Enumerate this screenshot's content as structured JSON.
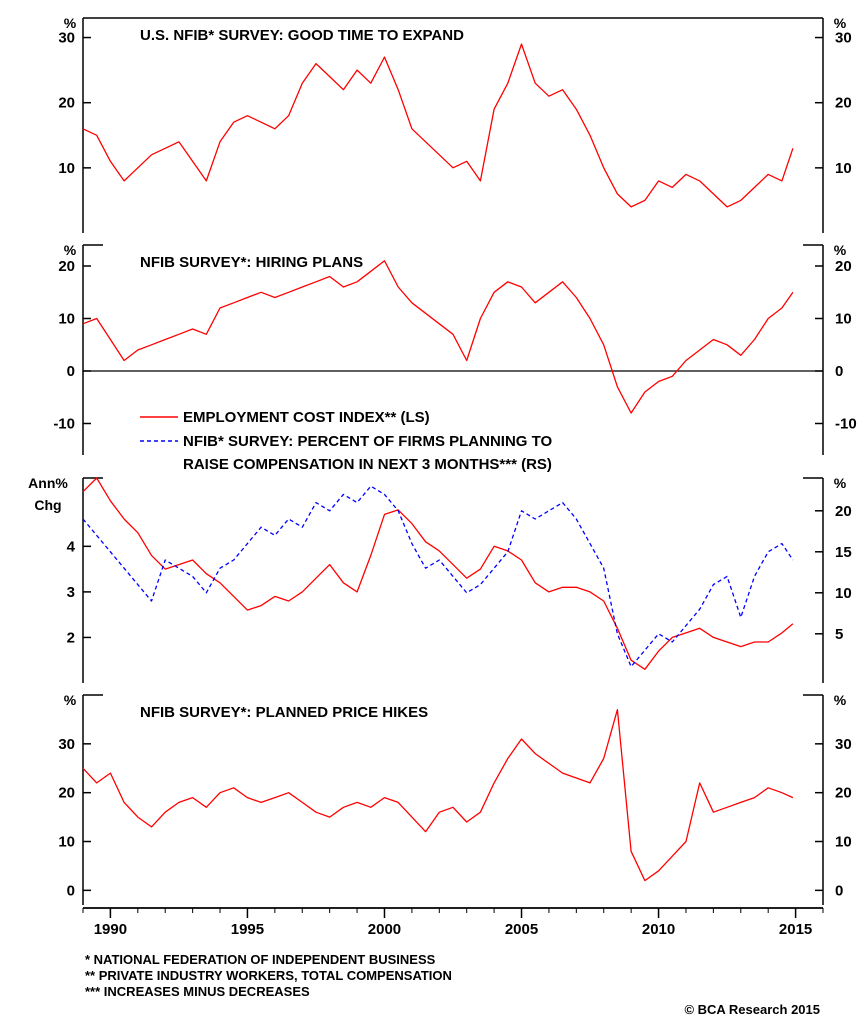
{
  "chart_data": [
    {
      "type": "line",
      "title": "U.S. NFIB* SURVEY: GOOD TIME TO EXPAND",
      "left_unit": "%",
      "right_unit": "%",
      "ylim": [
        0,
        33
      ],
      "yticks": [
        10,
        20,
        30
      ],
      "zero_line": false,
      "series": [
        {
          "color": "#ff0000",
          "dashed": false,
          "x": [
            1989.0,
            1989.5,
            1990.0,
            1990.5,
            1991.0,
            1991.5,
            1992.0,
            1992.5,
            1993.0,
            1993.5,
            1994.0,
            1994.5,
            1995.0,
            1995.5,
            1996.0,
            1996.5,
            1997.0,
            1997.5,
            1998.0,
            1998.5,
            1999.0,
            1999.5,
            2000.0,
            2000.5,
            2001.0,
            2001.5,
            2002.0,
            2002.5,
            2003.0,
            2003.5,
            2004.0,
            2004.5,
            2005.0,
            2005.5,
            2006.0,
            2006.5,
            2007.0,
            2007.5,
            2008.0,
            2008.5,
            2009.0,
            2009.5,
            2010.0,
            2010.5,
            2011.0,
            2011.5,
            2012.0,
            2012.5,
            2013.0,
            2013.5,
            2014.0,
            2014.5,
            2014.9
          ],
          "y": [
            16,
            15,
            11,
            8,
            10,
            12,
            13,
            14,
            11,
            8,
            14,
            17,
            18,
            17,
            16,
            18,
            23,
            26,
            24,
            22,
            25,
            23,
            27,
            22,
            16,
            14,
            12,
            10,
            11,
            8,
            19,
            23,
            29,
            23,
            21,
            22,
            19,
            15,
            10,
            6,
            4,
            5,
            8,
            7,
            9,
            8,
            6,
            4,
            5,
            7,
            9,
            8,
            13
          ]
        }
      ]
    },
    {
      "type": "line",
      "title": "NFIB SURVEY*: HIRING PLANS",
      "left_unit": "%",
      "right_unit": "%",
      "ylim": [
        -16,
        24
      ],
      "yticks": [
        -10,
        0,
        10,
        20
      ],
      "zero_line": true,
      "series": [
        {
          "color": "#ff0000",
          "dashed": false,
          "x": [
            1989.0,
            1989.5,
            1990.0,
            1990.5,
            1991.0,
            1991.5,
            1992.0,
            1992.5,
            1993.0,
            1993.5,
            1994.0,
            1994.5,
            1995.0,
            1995.5,
            1996.0,
            1996.5,
            1997.0,
            1997.5,
            1998.0,
            1998.5,
            1999.0,
            1999.5,
            2000.0,
            2000.5,
            2001.0,
            2001.5,
            2002.0,
            2002.5,
            2003.0,
            2003.5,
            2004.0,
            2004.5,
            2005.0,
            2005.5,
            2006.0,
            2006.5,
            2007.0,
            2007.5,
            2008.0,
            2008.5,
            2009.0,
            2009.5,
            2010.0,
            2010.5,
            2011.0,
            2011.5,
            2012.0,
            2012.5,
            2013.0,
            2013.5,
            2014.0,
            2014.5,
            2014.9
          ],
          "y": [
            9,
            10,
            6,
            2,
            4,
            5,
            6,
            7,
            8,
            7,
            12,
            13,
            14,
            15,
            14,
            15,
            16,
            17,
            18,
            16,
            17,
            19,
            21,
            16,
            13,
            11,
            9,
            7,
            2,
            10,
            15,
            17,
            16,
            13,
            15,
            17,
            14,
            10,
            5,
            -3,
            -8,
            -4,
            -2,
            -1,
            2,
            4,
            6,
            5,
            3,
            6,
            10,
            12,
            15
          ]
        }
      ]
    },
    {
      "type": "line",
      "title": "",
      "left_unit": "Ann%\nChg",
      "right_unit": "%",
      "ylim": [
        1.0,
        5.5
      ],
      "yticks": [
        2,
        3,
        4
      ],
      "right_ylim": [
        -1,
        24
      ],
      "right_yticks": [
        5,
        10,
        15,
        20
      ],
      "zero_line": false,
      "legend": [
        "EMPLOYMENT COST INDEX** (LS)",
        "NFIB* SURVEY: PERCENT OF FIRMS PLANNING TO",
        "RAISE COMPENSATION IN NEXT 3 MONTHS*** (RS)"
      ],
      "series": [
        {
          "name": "EMPLOYMENT COST INDEX** (LS)",
          "color": "#ff0000",
          "dashed": false,
          "axis": "left",
          "x": [
            1989.0,
            1989.5,
            1990.0,
            1990.5,
            1991.0,
            1991.5,
            1992.0,
            1992.5,
            1993.0,
            1993.5,
            1994.0,
            1994.5,
            1995.0,
            1995.5,
            1996.0,
            1996.5,
            1997.0,
            1997.5,
            1998.0,
            1998.5,
            1999.0,
            1999.5,
            2000.0,
            2000.5,
            2001.0,
            2001.5,
            2002.0,
            2002.5,
            2003.0,
            2003.5,
            2004.0,
            2004.5,
            2005.0,
            2005.5,
            2006.0,
            2006.5,
            2007.0,
            2007.5,
            2008.0,
            2008.5,
            2009.0,
            2009.5,
            2010.0,
            2010.5,
            2011.0,
            2011.5,
            2012.0,
            2012.5,
            2013.0,
            2013.5,
            2014.0,
            2014.5,
            2014.9
          ],
          "y": [
            5.2,
            5.5,
            5.0,
            4.6,
            4.3,
            3.8,
            3.5,
            3.6,
            3.7,
            3.4,
            3.2,
            2.9,
            2.6,
            2.7,
            2.9,
            2.8,
            3.0,
            3.3,
            3.6,
            3.2,
            3.0,
            3.8,
            4.7,
            4.8,
            4.5,
            4.1,
            3.9,
            3.6,
            3.3,
            3.5,
            4.0,
            3.9,
            3.7,
            3.2,
            3.0,
            3.1,
            3.1,
            3.0,
            2.8,
            2.2,
            1.5,
            1.3,
            1.7,
            2.0,
            2.1,
            2.2,
            2.0,
            1.9,
            1.8,
            1.9,
            1.9,
            2.1,
            2.3
          ]
        },
        {
          "name": "NFIB* SURVEY: PERCENT OF FIRMS PLANNING TO RAISE COMPENSATION IN NEXT 3 MONTHS*** (RS)",
          "color": "#0000ff",
          "dashed": true,
          "axis": "right",
          "x": [
            1989.0,
            1989.5,
            1990.0,
            1990.5,
            1991.0,
            1991.5,
            1992.0,
            1992.5,
            1993.0,
            1993.5,
            1994.0,
            1994.5,
            1995.0,
            1995.5,
            1996.0,
            1996.5,
            1997.0,
            1997.5,
            1998.0,
            1998.5,
            1999.0,
            1999.5,
            2000.0,
            2000.5,
            2001.0,
            2001.5,
            2002.0,
            2002.5,
            2003.0,
            2003.5,
            2004.0,
            2004.5,
            2005.0,
            2005.5,
            2006.0,
            2006.5,
            2007.0,
            2007.5,
            2008.0,
            2008.5,
            2009.0,
            2009.5,
            2010.0,
            2010.5,
            2011.0,
            2011.5,
            2012.0,
            2012.5,
            2013.0,
            2013.5,
            2014.0,
            2014.5,
            2014.9
          ],
          "y": [
            19,
            17,
            15,
            13,
            11,
            9,
            14,
            13,
            12,
            10,
            13,
            14,
            16,
            18,
            17,
            19,
            18,
            21,
            20,
            22,
            21,
            23,
            22,
            20,
            16,
            13,
            14,
            12,
            10,
            11,
            13,
            15,
            20,
            19,
            20,
            21,
            19,
            16,
            13,
            5,
            1,
            3,
            5,
            4,
            6,
            8,
            11,
            12,
            7,
            12,
            15,
            16,
            14
          ]
        }
      ]
    },
    {
      "type": "line",
      "title": "NFIB SURVEY*: PLANNED PRICE HIKES",
      "left_unit": "%",
      "right_unit": "%",
      "ylim": [
        -3,
        40
      ],
      "yticks": [
        0,
        10,
        20,
        30
      ],
      "zero_line": false,
      "series": [
        {
          "color": "#ff0000",
          "dashed": false,
          "x": [
            1989.0,
            1989.5,
            1990.0,
            1990.5,
            1991.0,
            1991.5,
            1992.0,
            1992.5,
            1993.0,
            1993.5,
            1994.0,
            1994.5,
            1995.0,
            1995.5,
            1996.0,
            1996.5,
            1997.0,
            1997.5,
            1998.0,
            1998.5,
            1999.0,
            1999.5,
            2000.0,
            2000.5,
            2001.0,
            2001.5,
            2002.0,
            2002.5,
            2003.0,
            2003.5,
            2004.0,
            2004.5,
            2005.0,
            2005.5,
            2006.0,
            2006.5,
            2007.0,
            2007.5,
            2008.0,
            2008.5,
            2009.0,
            2009.5,
            2010.0,
            2010.5,
            2011.0,
            2011.5,
            2012.0,
            2012.5,
            2013.0,
            2013.5,
            2014.0,
            2014.5,
            2014.9
          ],
          "y": [
            25,
            22,
            24,
            18,
            15,
            13,
            16,
            18,
            19,
            17,
            20,
            21,
            19,
            18,
            19,
            20,
            18,
            16,
            15,
            17,
            18,
            17,
            19,
            18,
            15,
            12,
            16,
            17,
            14,
            16,
            22,
            27,
            31,
            28,
            26,
            24,
            23,
            22,
            27,
            37,
            8,
            2,
            4,
            7,
            10,
            22,
            16,
            17,
            18,
            19,
            21,
            20,
            19
          ]
        }
      ]
    }
  ],
  "x_axis": {
    "min": 1989.0,
    "max": 2016.0,
    "ticks": [
      1990,
      1995,
      2000,
      2005,
      2010,
      2015
    ]
  },
  "footnotes": [
    "*  NATIONAL FEDERATION OF INDEPENDENT BUSINESS",
    "**  PRIVATE INDUSTRY WORKERS, TOTAL COMPENSATION",
    "*** INCREASES MINUS DECREASES"
  ],
  "credit": "© BCA Research 2015",
  "colors": {
    "primary_line": "#ff0000",
    "secondary_line": "#0000ff",
    "axis": "#000000"
  }
}
